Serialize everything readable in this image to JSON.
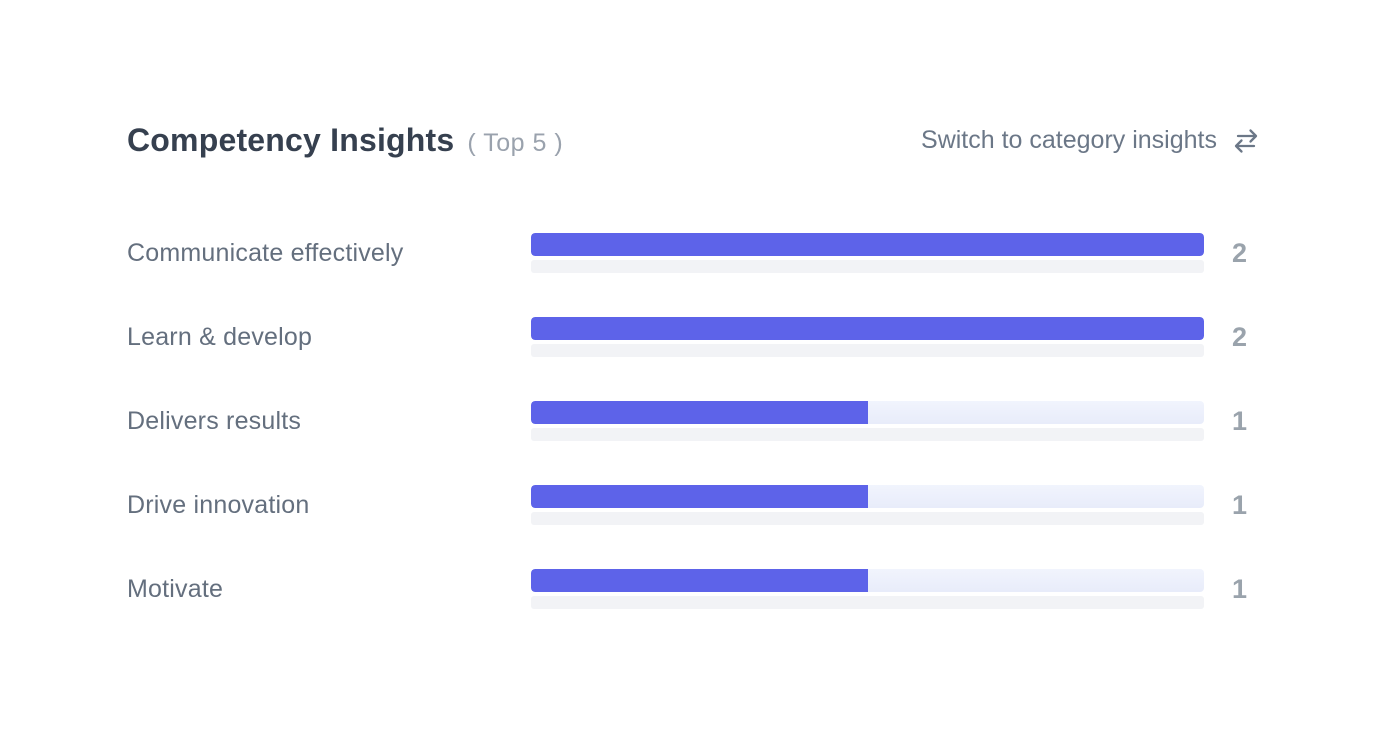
{
  "header": {
    "title": "Competency Insights",
    "subtitle": "( Top 5 )",
    "switch_link_label": "Switch to category insights",
    "switch_icon": "swap-horizontal-arrows-icon"
  },
  "chart_data": {
    "type": "bar",
    "orientation": "horizontal",
    "title": "Competency Insights ( Top 5 )",
    "categories": [
      "Communicate effectively",
      "Learn & develop",
      "Delivers results",
      "Drive innovation",
      "Motivate"
    ],
    "values": [
      2,
      2,
      1,
      1,
      1
    ],
    "value_range": [
      0,
      2
    ],
    "xlabel": "",
    "ylabel": "",
    "grid": false,
    "legend": false,
    "value_labels_shown": true,
    "bar_color": "#5d63e9",
    "track_color": "#ebeefb",
    "shadow_strip_color": "#f2f3f6"
  },
  "colors": {
    "background": "#ffffff",
    "title": "#36404f",
    "subtitle": "#9aa2ad",
    "link": "#6b7787",
    "label": "#646f7e",
    "value": "#9aa3ac",
    "accent": "#5d63e9"
  }
}
